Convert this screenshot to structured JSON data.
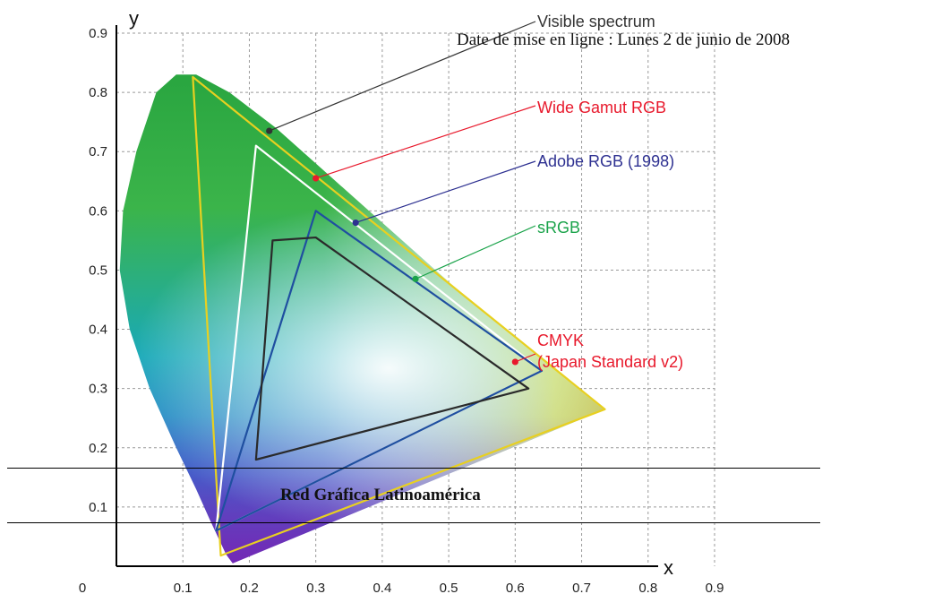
{
  "chart_data": {
    "type": "scatter",
    "title": "",
    "xlabel": "x",
    "ylabel": "y",
    "xlim": [
      0,
      0.9
    ],
    "ylim": [
      0,
      0.9
    ],
    "x_ticks": [
      "0",
      "0.1",
      "0.2",
      "0.3",
      "0.4",
      "0.5",
      "0.6",
      "0.7",
      "0.8",
      "0.9"
    ],
    "y_ticks": [
      "0.1",
      "0.2",
      "0.3",
      "0.4",
      "0.5",
      "0.6",
      "0.7",
      "0.8",
      "0.9"
    ],
    "grid": true,
    "spectral_locus": [
      [
        0.175,
        0.005
      ],
      [
        0.165,
        0.02
      ],
      [
        0.14,
        0.08
      ],
      [
        0.12,
        0.13
      ],
      [
        0.09,
        0.2
      ],
      [
        0.05,
        0.3
      ],
      [
        0.02,
        0.4
      ],
      [
        0.005,
        0.5
      ],
      [
        0.01,
        0.6
      ],
      [
        0.03,
        0.7
      ],
      [
        0.06,
        0.8
      ],
      [
        0.09,
        0.83
      ],
      [
        0.12,
        0.83
      ],
      [
        0.17,
        0.8
      ],
      [
        0.24,
        0.74
      ],
      [
        0.32,
        0.66
      ],
      [
        0.42,
        0.56
      ],
      [
        0.52,
        0.46
      ],
      [
        0.62,
        0.37
      ],
      [
        0.735,
        0.265
      ]
    ],
    "series": [
      {
        "name": "Wide Gamut RGB",
        "color": "#e8d020",
        "points": [
          [
            0.735,
            0.265
          ],
          [
            0.115,
            0.826
          ],
          [
            0.157,
            0.018
          ]
        ]
      },
      {
        "name": "Adobe RGB (1998)",
        "color": "#ffffff",
        "points": [
          [
            0.64,
            0.33
          ],
          [
            0.21,
            0.71
          ],
          [
            0.15,
            0.06
          ]
        ]
      },
      {
        "name": "sRGB",
        "color": "#1f4fa0",
        "points": [
          [
            0.64,
            0.33
          ],
          [
            0.3,
            0.6
          ],
          [
            0.15,
            0.06
          ]
        ]
      },
      {
        "name": "CMYK (Japan Standard v2)",
        "color": "#2a2a2a",
        "points": [
          [
            0.62,
            0.3
          ],
          [
            0.3,
            0.555
          ],
          [
            0.235,
            0.55
          ],
          [
            0.21,
            0.18
          ],
          [
            0.62,
            0.3
          ]
        ]
      }
    ],
    "annotations": [
      {
        "label": "Visible spectrum",
        "color": "#333333",
        "point": [
          0.23,
          0.735
        ]
      },
      {
        "label": "Wide Gamut RGB",
        "color": "#e8192c",
        "point": [
          0.3,
          0.655
        ]
      },
      {
        "label": "Adobe RGB (1998)",
        "color": "#2e3191",
        "point": [
          0.36,
          0.58
        ]
      },
      {
        "label": "sRGB",
        "color": "#1aa34a",
        "point": [
          0.45,
          0.485
        ]
      },
      {
        "label": "CMYK",
        "label2": "(Japan Standard v2)",
        "color": "#e8192c",
        "point": [
          0.6,
          0.345
        ]
      }
    ]
  },
  "page": {
    "date_line": "Date de mise en ligne : Lunes 2 de junio de 2008",
    "banner": "Red Gráfica Latinoamérica"
  }
}
